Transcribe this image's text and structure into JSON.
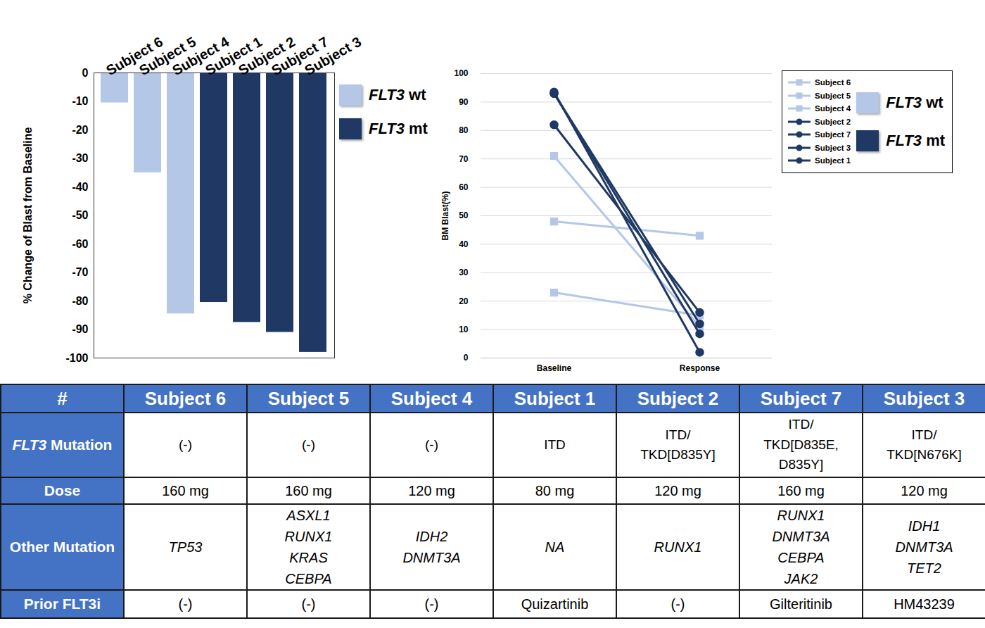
{
  "chart_data": [
    {
      "type": "bar",
      "categories": [
        "Subject 6",
        "Subject 5",
        "Subject 4",
        "Subject 1",
        "Subject 2",
        "Subject 7",
        "Subject 3"
      ],
      "series": [
        {
          "name": "FLT3 wt",
          "color": "#b4c7e7",
          "values": [
            -10.5,
            -35,
            -84.5,
            null,
            null,
            null,
            null
          ]
        },
        {
          "name": "FLT3 mt",
          "color": "#1f3864",
          "values": [
            null,
            null,
            null,
            -80.5,
            -87.5,
            -91,
            -98
          ]
        }
      ],
      "y_label": "% Change of Blast from Baseline",
      "ylim": [
        -100,
        0
      ],
      "yticks": [
        0,
        -10,
        -20,
        -30,
        -40,
        -50,
        -60,
        -70,
        -80,
        -90,
        -100
      ],
      "grid": false,
      "legend": "right"
    },
    {
      "type": "line",
      "categories": [
        "Baseline",
        "Response"
      ],
      "series": [
        {
          "name": "Subject 6",
          "color": "#b4c7e7",
          "marker": "square",
          "values": [
            48,
            43
          ]
        },
        {
          "name": "Subject 5",
          "color": "#b4c7e7",
          "marker": "square",
          "values": [
            23,
            15
          ]
        },
        {
          "name": "Subject 4",
          "color": "#b4c7e7",
          "marker": "square",
          "values": [
            71,
            11
          ]
        },
        {
          "name": "Subject 2",
          "color": "#1f3864",
          "marker": "circle",
          "values": [
            93,
            12
          ]
        },
        {
          "name": "Subject 7",
          "color": "#1f3864",
          "marker": "circle",
          "values": [
            93,
            8.5
          ]
        },
        {
          "name": "Subject 3",
          "color": "#1f3864",
          "marker": "circle",
          "values": [
            93.5,
            2
          ]
        },
        {
          "name": "Subject 1",
          "color": "#1f3864",
          "marker": "circle",
          "values": [
            82,
            16
          ]
        }
      ],
      "groups": [
        {
          "name": "FLT3 wt",
          "color": "#b4c7e7"
        },
        {
          "name": "FLT3 mt",
          "color": "#1f3864"
        }
      ],
      "y_label": "BM Blast(%)",
      "ylim": [
        0,
        100
      ],
      "yticks": [
        0,
        10,
        20,
        30,
        40,
        50,
        60,
        70,
        80,
        90,
        100
      ],
      "grid": true,
      "legend": "right"
    }
  ],
  "table": {
    "header": [
      "#",
      "Subject 6",
      "Subject 5",
      "Subject 4",
      "Subject 1",
      "Subject 2",
      "Subject 7",
      "Subject 3"
    ],
    "rows": [
      {
        "label": "FLT3 Mutation",
        "cells": [
          [
            "(-)"
          ],
          [
            "(-)"
          ],
          [
            "(-)"
          ],
          [
            "ITD"
          ],
          [
            "ITD/",
            "TKD[D835Y]"
          ],
          [
            "ITD/",
            "TKD[D835E,",
            "D835Y]"
          ],
          [
            "ITD/",
            "TKD[N676K]"
          ]
        ]
      },
      {
        "label": "Dose",
        "cells": [
          [
            "160 mg"
          ],
          [
            "160 mg"
          ],
          [
            "120 mg"
          ],
          [
            "80 mg"
          ],
          [
            "120 mg"
          ],
          [
            "160 mg"
          ],
          [
            "120 mg"
          ]
        ]
      },
      {
        "label": "Other Mutation",
        "cells": [
          [
            "TP53"
          ],
          [
            "ASXL1",
            "RUNX1",
            "KRAS",
            "CEBPA"
          ],
          [
            "IDH2",
            "DNMT3A"
          ],
          [
            "NA"
          ],
          [
            "RUNX1"
          ],
          [
            "RUNX1",
            "DNMT3A",
            "CEBPA",
            "JAK2"
          ],
          [
            "IDH1",
            "DNMT3A",
            "TET2"
          ]
        ]
      },
      {
        "label": "Prior FLT3i",
        "cells": [
          [
            "(-)"
          ],
          [
            "(-)"
          ],
          [
            "(-)"
          ],
          [
            "Quizartinib"
          ],
          [
            "(-)"
          ],
          [
            "Gilteritinib"
          ],
          [
            "HM43239"
          ]
        ]
      }
    ]
  }
}
